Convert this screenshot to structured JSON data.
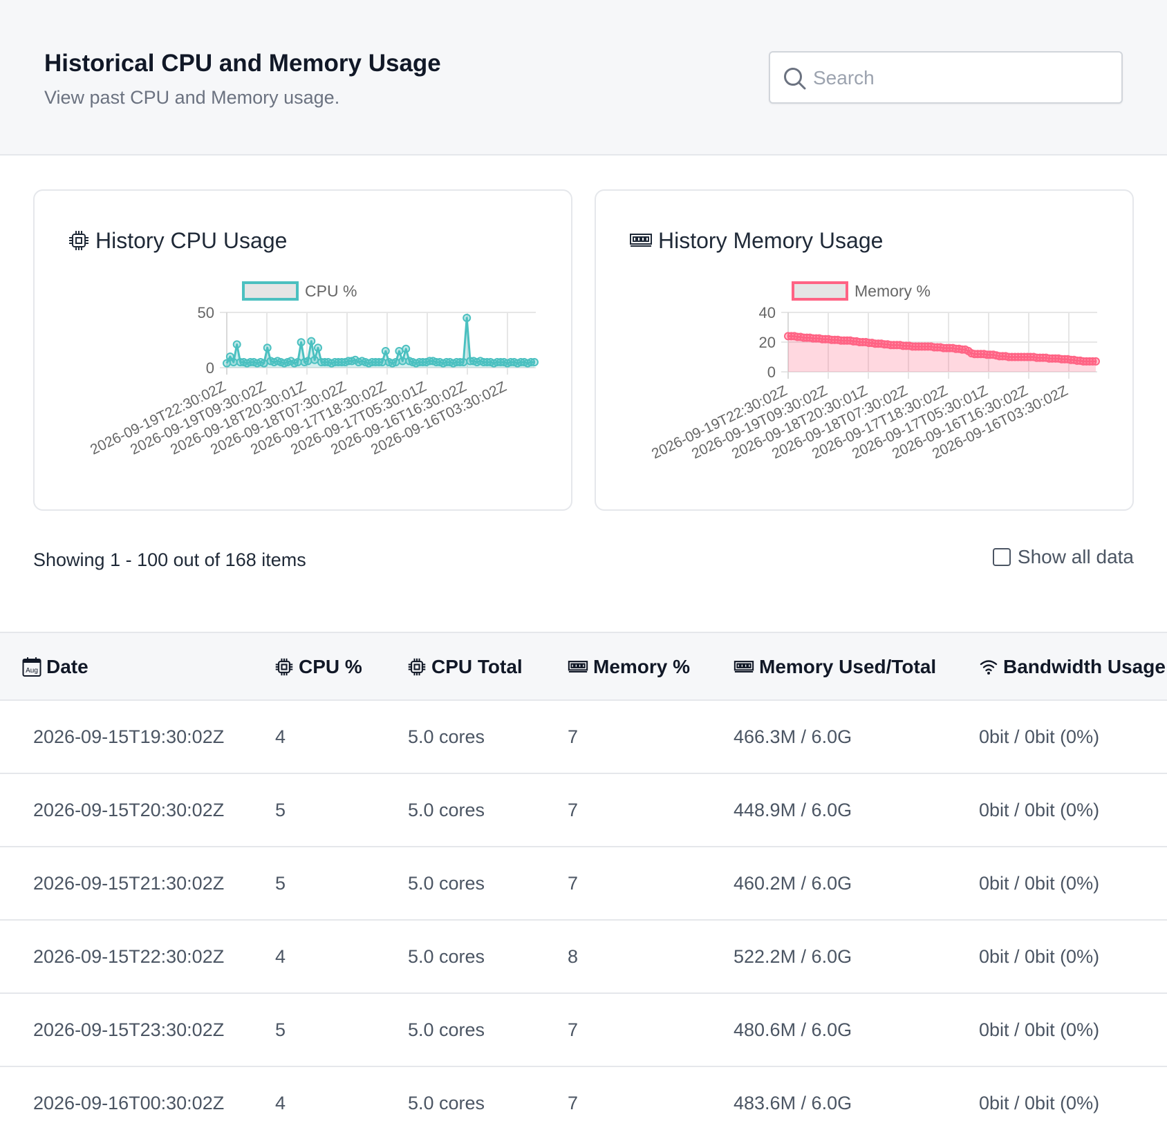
{
  "header": {
    "title": "Historical CPU and Memory Usage",
    "subtitle": "View past CPU and Memory usage.",
    "search_placeholder": "Search"
  },
  "cpu_card": {
    "title": "History CPU Usage"
  },
  "mem_card": {
    "title": "History Memory Usage"
  },
  "chart_data": [
    {
      "type": "line",
      "title": "History CPU Usage",
      "legend": "top",
      "color": "#4bc0c0",
      "series": [
        {
          "name": "CPU %",
          "values": [
            4,
            10,
            5,
            21,
            5,
            5,
            4,
            5,
            5,
            4,
            5,
            4,
            18,
            6,
            5,
            6,
            5,
            4,
            5,
            6,
            4,
            5,
            23,
            5,
            6,
            24,
            7,
            18,
            5,
            5,
            5,
            4,
            5,
            5,
            5,
            5,
            6,
            6,
            7,
            5,
            6,
            5,
            4,
            5,
            5,
            5,
            5,
            15,
            5,
            4,
            5,
            15,
            6,
            17,
            6,
            5,
            4,
            5,
            5,
            5,
            6,
            6,
            5,
            5,
            4,
            5,
            5,
            4,
            5,
            5,
            5,
            45,
            6,
            6,
            5,
            6,
            5,
            5,
            5,
            4,
            5,
            5,
            5,
            4,
            5,
            5,
            4,
            5,
            5,
            4,
            5,
            5
          ]
        }
      ],
      "x_tick_labels": [
        "2026-09-19T22:30:02Z",
        "2026-09-19T09:30:02Z",
        "2026-09-18T20:30:01Z",
        "2026-09-18T07:30:02Z",
        "2026-09-17T18:30:02Z",
        "2026-09-17T05:30:01Z",
        "2026-09-16T16:30:02Z",
        "2026-09-16T03:30:02Z"
      ],
      "y_ticks": [
        0,
        50
      ],
      "ylim": [
        0,
        50
      ],
      "grid": true
    },
    {
      "type": "line",
      "title": "History Memory Usage",
      "legend": "top",
      "color": "#ff6384",
      "series": [
        {
          "name": "Memory %",
          "values": [
            24,
            24,
            24,
            23.5,
            23.5,
            23,
            23,
            23,
            22.5,
            22.5,
            22.5,
            22,
            22,
            22,
            21.5,
            21.5,
            21.5,
            21,
            21,
            21,
            21,
            20.5,
            20.5,
            20,
            20,
            20,
            19.5,
            19.5,
            19,
            19,
            19,
            18.5,
            18.5,
            18,
            18,
            18,
            18,
            17.5,
            17.5,
            17.5,
            17,
            17,
            17,
            17,
            17,
            17,
            17,
            16.5,
            16.5,
            16.5,
            16,
            16,
            16,
            16,
            15.5,
            15.5,
            15,
            15,
            14,
            12.5,
            12,
            12,
            12,
            12,
            11.5,
            11.5,
            11.5,
            11,
            10.5,
            10.5,
            10.5,
            10,
            10,
            10,
            10,
            10,
            10,
            10,
            10,
            10,
            9.5,
            9.5,
            9.5,
            9.5,
            9,
            9,
            9,
            9,
            8.5,
            8.5,
            8.5,
            8,
            8,
            7.5,
            7.5,
            7,
            7,
            7,
            7,
            7
          ]
        }
      ],
      "x_tick_labels": [
        "2026-09-19T22:30:02Z",
        "2026-09-19T09:30:02Z",
        "2026-09-18T20:30:01Z",
        "2026-09-18T07:30:02Z",
        "2026-09-17T18:30:02Z",
        "2026-09-17T05:30:01Z",
        "2026-09-16T16:30:02Z",
        "2026-09-16T03:30:02Z"
      ],
      "y_ticks": [
        0,
        20,
        40
      ],
      "ylim": [
        0,
        40
      ],
      "grid": true
    }
  ],
  "pagination": {
    "showing_text": "Showing 1 - 100 out of 168 items"
  },
  "show_all": {
    "label": "Show all data",
    "checked": false
  },
  "table": {
    "columns": [
      "Date",
      "CPU %",
      "CPU Total",
      "Memory %",
      "Memory Used/Total",
      "Bandwidth Usage"
    ],
    "column_icons": [
      "calendar-icon",
      "cpu-icon",
      "cpu-icon",
      "memory-icon",
      "memory-icon",
      "wifi-icon"
    ],
    "calendar_icon_text": "Aug",
    "rows": [
      [
        "2026-09-15T19:30:02Z",
        "4",
        "5.0 cores",
        "7",
        "466.3M / 6.0G",
        "0bit / 0bit (0%)"
      ],
      [
        "2026-09-15T20:30:02Z",
        "5",
        "5.0 cores",
        "7",
        "448.9M / 6.0G",
        "0bit / 0bit (0%)"
      ],
      [
        "2026-09-15T21:30:02Z",
        "5",
        "5.0 cores",
        "7",
        "460.2M / 6.0G",
        "0bit / 0bit (0%)"
      ],
      [
        "2026-09-15T22:30:02Z",
        "4",
        "5.0 cores",
        "8",
        "522.2M / 6.0G",
        "0bit / 0bit (0%)"
      ],
      [
        "2026-09-15T23:30:02Z",
        "5",
        "5.0 cores",
        "7",
        "480.6M / 6.0G",
        "0bit / 0bit (0%)"
      ],
      [
        "2026-09-16T00:30:02Z",
        "4",
        "5.0 cores",
        "7",
        "483.6M / 6.0G",
        "0bit / 0bit (0%)"
      ]
    ]
  },
  "colors": {
    "cpu": "#4bc0c0",
    "memory": "#ff6384",
    "border": "#e5e7eb",
    "header_bg": "#f6f7f9"
  }
}
